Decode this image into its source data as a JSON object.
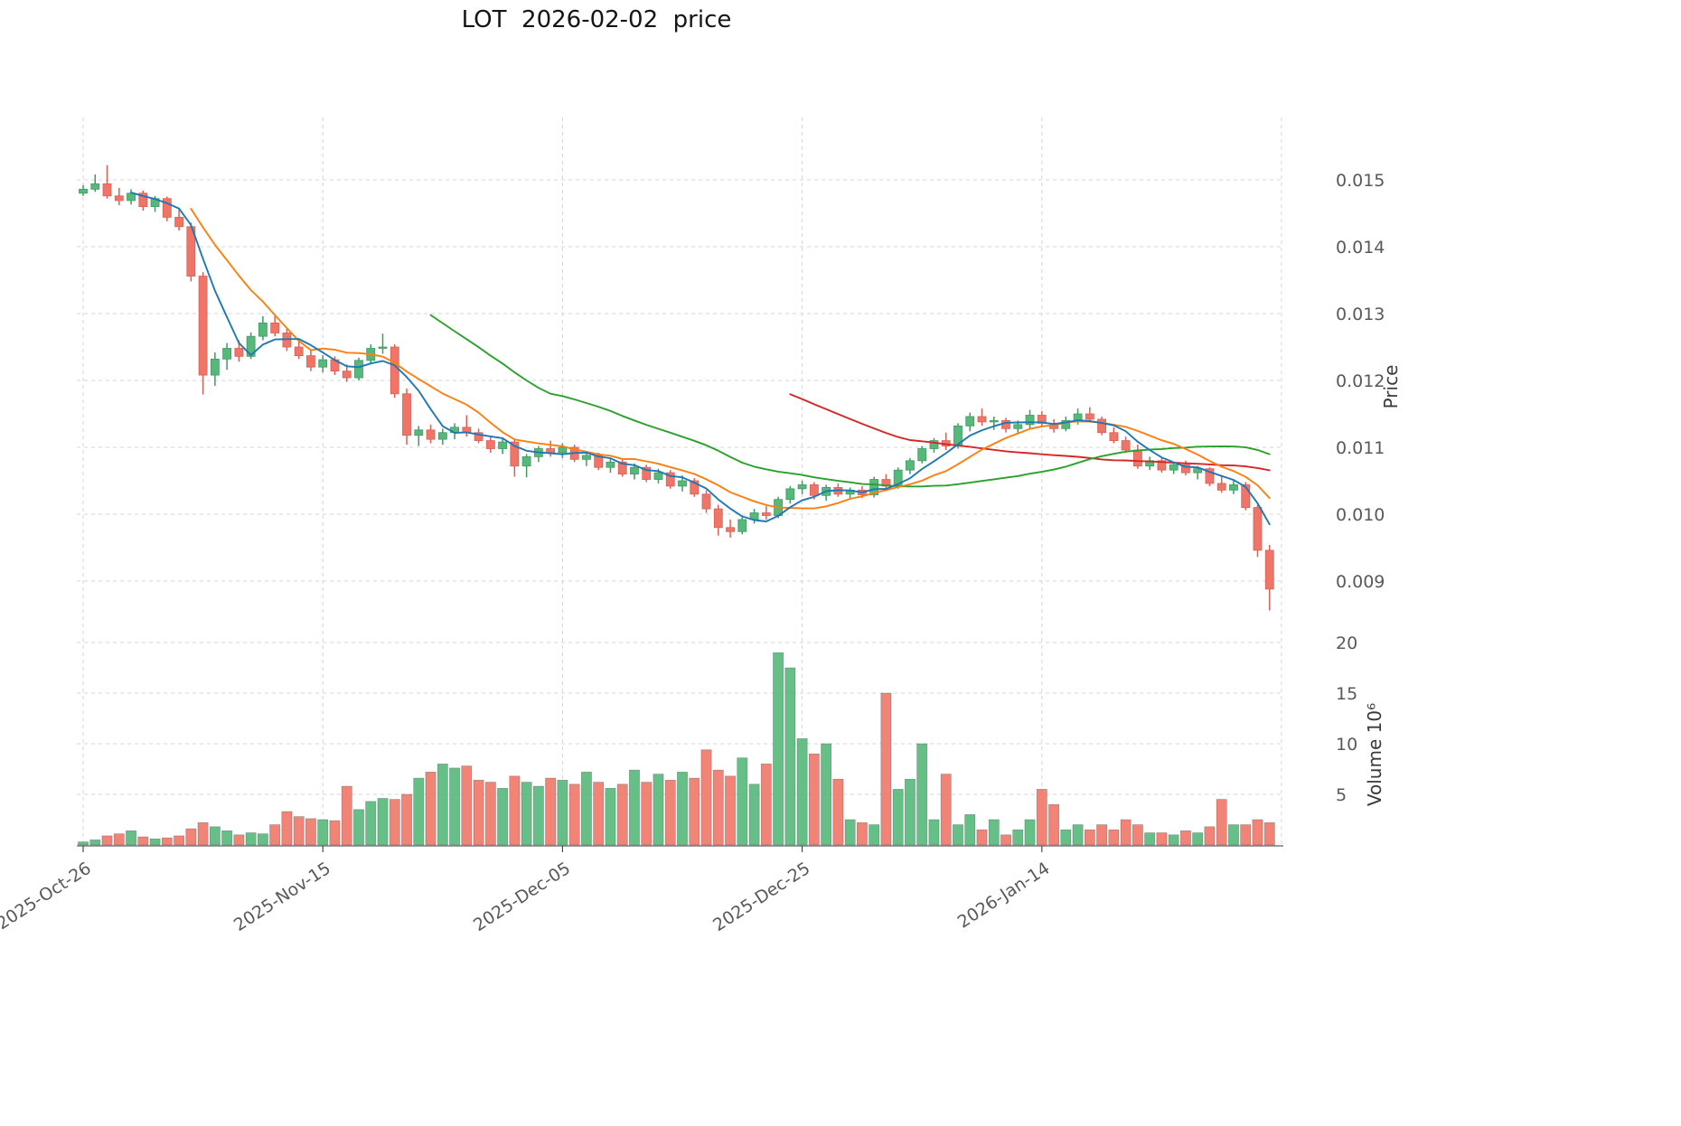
{
  "chart_data": {
    "type": "candlestick",
    "title": "LOT  2026-02-02  price",
    "ylabel_price": "Price",
    "ylabel_volume": "Volume 10⁶",
    "grid": true,
    "legend": false,
    "ylim_price": [
      0.0085,
      0.0156
    ],
    "ylim_volume": [
      0,
      21.5
    ],
    "price_ticks": [
      {
        "label": "0.015",
        "value": 0.015
      },
      {
        "label": "0.014",
        "value": 0.014
      },
      {
        "label": "0.013",
        "value": 0.013
      },
      {
        "label": "0.012",
        "value": 0.012
      },
      {
        "label": "0.011",
        "value": 0.011
      },
      {
        "label": "0.010",
        "value": 0.01
      },
      {
        "label": "0.009",
        "value": 0.009
      }
    ],
    "volume_ticks": [
      {
        "label": "20",
        "value": 20
      },
      {
        "label": "15",
        "value": 15
      },
      {
        "label": "10",
        "value": 10
      },
      {
        "label": "5",
        "value": 5
      }
    ],
    "x_ticks": [
      {
        "label": "2025-Oct-26",
        "day": 0
      },
      {
        "label": "2025-Nov-15",
        "day": 20
      },
      {
        "label": "2025-Dec-05",
        "day": 40
      },
      {
        "label": "2025-Dec-25",
        "day": 60
      },
      {
        "label": "2026-Jan-14",
        "day": 80
      }
    ],
    "extra_gridline_days": [
      100
    ],
    "colors": {
      "up": "#56b87b",
      "up_edge": "#3d9c63",
      "down": "#ef7568",
      "down_edge": "#d95f55",
      "vol_edge": "#4a4a4a",
      "grid": "#d4d4d4",
      "axis_text": "#595959",
      "title_text": "#151515"
    },
    "moving_averages": [
      {
        "name": "ma5",
        "window": 5,
        "color": "#1f77b4"
      },
      {
        "name": "ma10",
        "window": 10,
        "color": "#ff7f0e"
      },
      {
        "name": "ma30",
        "window": 30,
        "color": "#2ca02c"
      },
      {
        "name": "ma60",
        "window": 60,
        "color": "#d62728"
      }
    ],
    "columns": [
      "date",
      "open",
      "high",
      "low",
      "close",
      "volume"
    ],
    "candles": [
      [
        "2025-10-26",
        0.0148,
        0.01492,
        0.01476,
        0.01486,
        0.3
      ],
      [
        "2025-10-27",
        0.01486,
        0.01508,
        0.01482,
        0.01494,
        0.5
      ],
      [
        "2025-10-28",
        0.01494,
        0.01522,
        0.01472,
        0.01476,
        0.9
      ],
      [
        "2025-10-29",
        0.01476,
        0.01488,
        0.01462,
        0.01469,
        1.1
      ],
      [
        "2025-10-30",
        0.01469,
        0.01486,
        0.01463,
        0.0148,
        1.4
      ],
      [
        "2025-10-31",
        0.0148,
        0.01484,
        0.01454,
        0.0146,
        0.8
      ],
      [
        "2025-11-01",
        0.0146,
        0.01476,
        0.01452,
        0.01472,
        0.6
      ],
      [
        "2025-11-02",
        0.01472,
        0.01475,
        0.01438,
        0.01444,
        0.7
      ],
      [
        "2025-11-03",
        0.01444,
        0.01456,
        0.01424,
        0.0143,
        0.9
      ],
      [
        "2025-11-04",
        0.0143,
        0.01436,
        0.01348,
        0.01356,
        1.6
      ],
      [
        "2025-11-05",
        0.01356,
        0.01362,
        0.01179,
        0.01208,
        2.2
      ],
      [
        "2025-11-06",
        0.01208,
        0.01242,
        0.01192,
        0.01232,
        1.8
      ],
      [
        "2025-11-07",
        0.01232,
        0.01256,
        0.01216,
        0.01248,
        1.4
      ],
      [
        "2025-11-08",
        0.01248,
        0.0126,
        0.01228,
        0.01236,
        1.0
      ],
      [
        "2025-11-09",
        0.01236,
        0.01272,
        0.01232,
        0.01266,
        1.2
      ],
      [
        "2025-11-10",
        0.01266,
        0.01296,
        0.0126,
        0.01286,
        1.1
      ],
      [
        "2025-11-11",
        0.01286,
        0.01298,
        0.01266,
        0.01271,
        2.0
      ],
      [
        "2025-11-12",
        0.01271,
        0.01278,
        0.01244,
        0.0125,
        3.3
      ],
      [
        "2025-11-13",
        0.0125,
        0.01262,
        0.01232,
        0.01237,
        2.8
      ],
      [
        "2025-11-14",
        0.01237,
        0.01246,
        0.01214,
        0.0122,
        2.6
      ],
      [
        "2025-11-15",
        0.0122,
        0.01238,
        0.01212,
        0.01231,
        2.5
      ],
      [
        "2025-11-16",
        0.01231,
        0.01236,
        0.01208,
        0.01214,
        2.4
      ],
      [
        "2025-11-17",
        0.01214,
        0.01224,
        0.01198,
        0.01204,
        5.8
      ],
      [
        "2025-11-18",
        0.01204,
        0.01234,
        0.012,
        0.0123,
        3.5
      ],
      [
        "2025-11-19",
        0.0123,
        0.01254,
        0.01224,
        0.01248,
        4.3
      ],
      [
        "2025-11-20",
        0.01248,
        0.0127,
        0.0124,
        0.0125,
        4.6
      ],
      [
        "2025-11-21",
        0.0125,
        0.01254,
        0.01174,
        0.0118,
        4.5
      ],
      [
        "2025-11-22",
        0.0118,
        0.01188,
        0.01104,
        0.01118,
        5.0
      ],
      [
        "2025-11-23",
        0.01118,
        0.01132,
        0.01102,
        0.01126,
        6.6
      ],
      [
        "2025-11-24",
        0.01126,
        0.01134,
        0.01106,
        0.01112,
        7.2
      ],
      [
        "2025-11-25",
        0.01112,
        0.01128,
        0.01104,
        0.01122,
        8.0
      ],
      [
        "2025-11-26",
        0.01122,
        0.01136,
        0.01112,
        0.0113,
        7.6
      ],
      [
        "2025-11-27",
        0.0113,
        0.01148,
        0.01116,
        0.01122,
        7.8
      ],
      [
        "2025-11-28",
        0.01122,
        0.01128,
        0.01106,
        0.0111,
        6.4
      ],
      [
        "2025-11-29",
        0.0111,
        0.01116,
        0.01092,
        0.01098,
        6.2
      ],
      [
        "2025-11-30",
        0.01098,
        0.01114,
        0.0109,
        0.01108,
        5.6
      ],
      [
        "2025-12-01",
        0.01108,
        0.01112,
        0.01056,
        0.01072,
        6.8
      ],
      [
        "2025-12-02",
        0.01072,
        0.0109,
        0.01055,
        0.01086,
        6.2
      ],
      [
        "2025-12-03",
        0.01086,
        0.01102,
        0.01078,
        0.01098,
        5.8
      ],
      [
        "2025-12-04",
        0.01098,
        0.0111,
        0.01086,
        0.01092,
        6.6
      ],
      [
        "2025-12-05",
        0.01092,
        0.01106,
        0.01084,
        0.011,
        6.4
      ],
      [
        "2025-12-06",
        0.011,
        0.01104,
        0.01078,
        0.01082,
        6.0
      ],
      [
        "2025-12-07",
        0.01082,
        0.01094,
        0.01072,
        0.01088,
        7.2
      ],
      [
        "2025-12-08",
        0.01088,
        0.01092,
        0.01066,
        0.0107,
        6.2
      ],
      [
        "2025-12-09",
        0.0107,
        0.01084,
        0.01062,
        0.01078,
        5.6
      ],
      [
        "2025-12-10",
        0.01078,
        0.01082,
        0.01056,
        0.0106,
        6.0
      ],
      [
        "2025-12-11",
        0.0106,
        0.01076,
        0.01052,
        0.0107,
        7.4
      ],
      [
        "2025-12-12",
        0.0107,
        0.01074,
        0.01048,
        0.01052,
        6.2
      ],
      [
        "2025-12-13",
        0.01052,
        0.01068,
        0.01046,
        0.01062,
        7.0
      ],
      [
        "2025-12-14",
        0.01062,
        0.01066,
        0.01038,
        0.01042,
        6.4
      ],
      [
        "2025-12-15",
        0.01042,
        0.01058,
        0.01034,
        0.0105,
        7.2
      ],
      [
        "2025-12-16",
        0.0105,
        0.01054,
        0.01026,
        0.0103,
        6.6
      ],
      [
        "2025-12-17",
        0.0103,
        0.01036,
        0.01002,
        0.01008,
        9.4
      ],
      [
        "2025-12-18",
        0.01008,
        0.01014,
        0.00968,
        0.0098,
        7.4
      ],
      [
        "2025-12-19",
        0.0098,
        0.00992,
        0.00965,
        0.00974,
        6.8
      ],
      [
        "2025-12-20",
        0.00974,
        0.00996,
        0.0097,
        0.00992,
        8.6
      ],
      [
        "2025-12-21",
        0.00992,
        0.01008,
        0.00986,
        0.01002,
        6.0
      ],
      [
        "2025-12-22",
        0.01002,
        0.01012,
        0.00992,
        0.00998,
        8.0
      ],
      [
        "2025-12-23",
        0.00998,
        0.01026,
        0.00994,
        0.01022,
        19.0
      ],
      [
        "2025-12-24",
        0.01022,
        0.01042,
        0.01016,
        0.01038,
        17.5
      ],
      [
        "2025-12-25",
        0.01038,
        0.0105,
        0.0103,
        0.01044,
        10.5
      ],
      [
        "2025-12-26",
        0.01044,
        0.01048,
        0.01022,
        0.01028,
        9.0
      ],
      [
        "2025-12-27",
        0.01028,
        0.01044,
        0.0102,
        0.0104,
        10.0
      ],
      [
        "2025-12-28",
        0.0104,
        0.01046,
        0.01026,
        0.0103,
        6.5
      ],
      [
        "2025-12-29",
        0.0103,
        0.0104,
        0.01022,
        0.01036,
        2.5
      ],
      [
        "2025-12-30",
        0.01036,
        0.01042,
        0.01024,
        0.01029,
        2.2
      ],
      [
        "2025-12-31",
        0.01029,
        0.01056,
        0.01025,
        0.01052,
        2.0
      ],
      [
        "2026-01-01",
        0.01052,
        0.0106,
        0.01036,
        0.01042,
        15.0
      ],
      [
        "2026-01-02",
        0.01042,
        0.0107,
        0.01038,
        0.01066,
        5.5
      ],
      [
        "2026-01-03",
        0.01066,
        0.01084,
        0.0106,
        0.0108,
        6.5
      ],
      [
        "2026-01-04",
        0.0108,
        0.01102,
        0.01076,
        0.01098,
        10.0
      ],
      [
        "2026-01-05",
        0.01098,
        0.01114,
        0.01092,
        0.0111,
        2.5
      ],
      [
        "2026-01-06",
        0.0111,
        0.01122,
        0.01096,
        0.01102,
        7.0
      ],
      [
        "2026-01-07",
        0.01102,
        0.01136,
        0.01098,
        0.01132,
        2.0
      ],
      [
        "2026-01-08",
        0.01132,
        0.01152,
        0.01124,
        0.01146,
        3.0
      ],
      [
        "2026-01-09",
        0.01146,
        0.01158,
        0.01132,
        0.01138,
        1.5
      ],
      [
        "2026-01-10",
        0.01138,
        0.01146,
        0.01126,
        0.0114,
        2.5
      ],
      [
        "2026-01-11",
        0.0114,
        0.01144,
        0.01122,
        0.01128,
        1.0
      ],
      [
        "2026-01-12",
        0.01128,
        0.0114,
        0.0112,
        0.01134,
        1.5
      ],
      [
        "2026-01-13",
        0.01134,
        0.01156,
        0.01128,
        0.01148,
        2.5
      ],
      [
        "2026-01-14",
        0.01148,
        0.01154,
        0.0113,
        0.01136,
        5.5
      ],
      [
        "2026-01-15",
        0.01136,
        0.01142,
        0.01122,
        0.01128,
        4.0
      ],
      [
        "2026-01-16",
        0.01128,
        0.01146,
        0.01124,
        0.0114,
        1.5
      ],
      [
        "2026-01-17",
        0.0114,
        0.01158,
        0.01134,
        0.0115,
        2.0
      ],
      [
        "2026-01-18",
        0.0115,
        0.0116,
        0.01138,
        0.01142,
        1.5
      ],
      [
        "2026-01-19",
        0.01142,
        0.01146,
        0.01118,
        0.01122,
        2.0
      ],
      [
        "2026-01-20",
        0.01122,
        0.0113,
        0.01106,
        0.0111,
        1.5
      ],
      [
        "2026-01-21",
        0.0111,
        0.01116,
        0.01092,
        0.01096,
        2.5
      ],
      [
        "2026-01-22",
        0.01096,
        0.01104,
        0.01068,
        0.01072,
        2.0
      ],
      [
        "2026-01-23",
        0.01072,
        0.01086,
        0.01066,
        0.0108,
        1.2
      ],
      [
        "2026-01-24",
        0.0108,
        0.01084,
        0.01062,
        0.01066,
        1.2
      ],
      [
        "2026-01-25",
        0.01066,
        0.01078,
        0.0106,
        0.01074,
        1.0
      ],
      [
        "2026-01-26",
        0.01074,
        0.0108,
        0.01058,
        0.01062,
        1.4
      ],
      [
        "2026-01-27",
        0.01062,
        0.01072,
        0.01052,
        0.01068,
        1.2
      ],
      [
        "2026-01-28",
        0.01068,
        0.0107,
        0.01042,
        0.01046,
        1.8
      ],
      [
        "2026-01-29",
        0.01046,
        0.01056,
        0.01032,
        0.01036,
        4.5
      ],
      [
        "2026-01-30",
        0.01036,
        0.0105,
        0.0103,
        0.01044,
        2.0
      ],
      [
        "2026-01-31",
        0.01044,
        0.01048,
        0.01006,
        0.0101,
        2.0
      ],
      [
        "2026-02-01",
        0.0101,
        0.01014,
        0.00936,
        0.00946,
        2.5
      ],
      [
        "2026-02-02",
        0.00946,
        0.00954,
        0.00856,
        0.00888,
        2.2
      ]
    ]
  }
}
